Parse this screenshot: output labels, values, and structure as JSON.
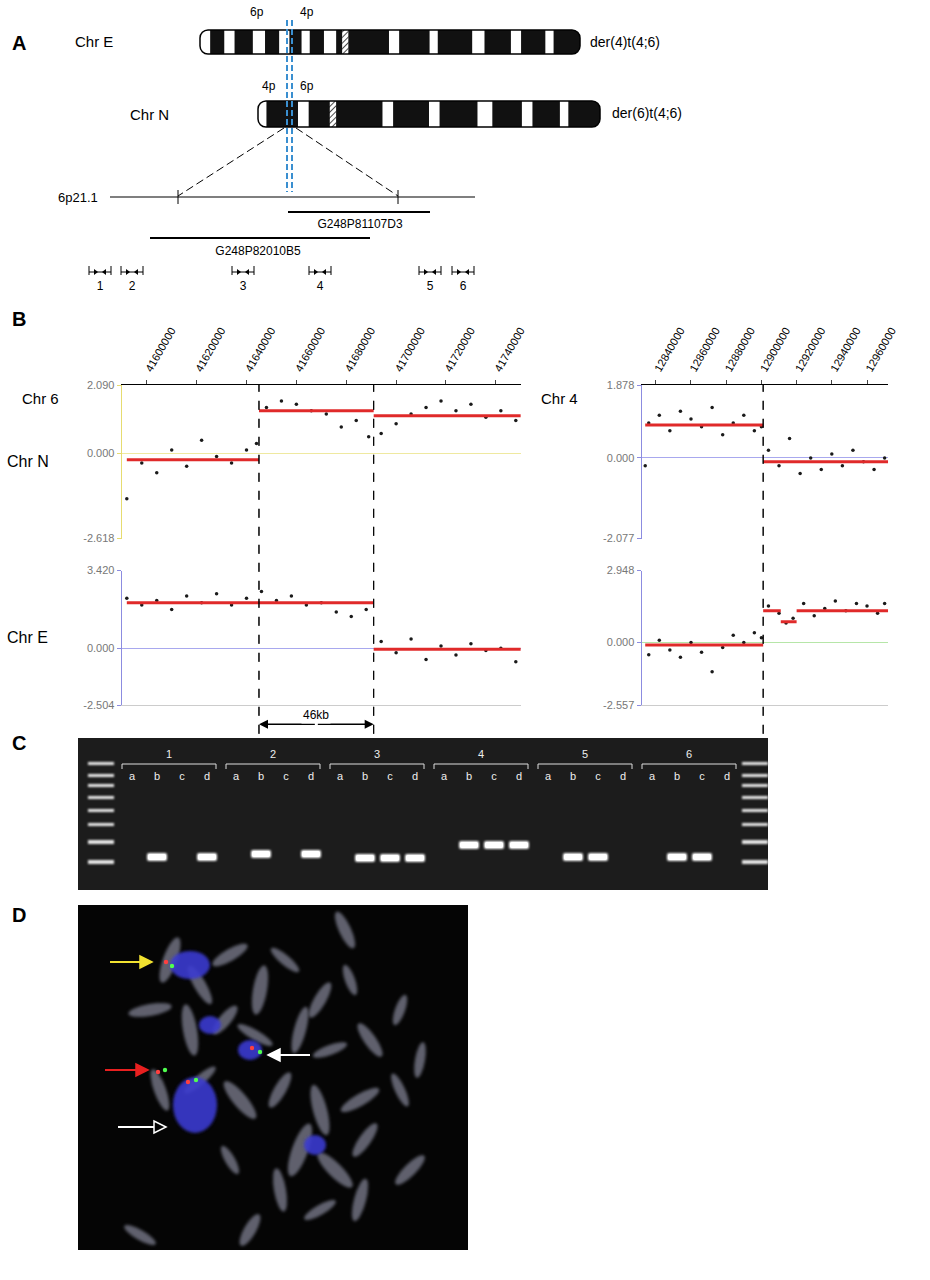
{
  "figure": {
    "A": {
      "letter": "A",
      "chromosomes": [
        {
          "name": "Chr E",
          "label": "der(4)t(4;6)",
          "arms": [
            "6p",
            "4p"
          ]
        },
        {
          "name": "Chr N",
          "label": "der(6)t(4;6)",
          "arms": [
            "4p",
            "6p"
          ]
        }
      ],
      "band": "6p21.1",
      "clones": [
        "G248P82010B5",
        "G248P81107D3"
      ],
      "primers": [
        1,
        2,
        3,
        4,
        5,
        6
      ]
    },
    "B": {
      "letter": "B",
      "span_label": "46kb"
    },
    "C": {
      "letter": "C",
      "groups": [
        {
          "label": "1",
          "lanes": [
            "a",
            "b",
            "c",
            "d"
          ],
          "bands": [
            "b",
            "d"
          ]
        },
        {
          "label": "2",
          "lanes": [
            "a",
            "b",
            "c",
            "d"
          ],
          "bands": [
            "b",
            "d"
          ]
        },
        {
          "label": "3",
          "lanes": [
            "a",
            "b",
            "c",
            "d"
          ],
          "bands": [
            "b",
            "c",
            "d"
          ]
        },
        {
          "label": "4",
          "lanes": [
            "a",
            "b",
            "c",
            "d"
          ],
          "bands": [
            "b",
            "c",
            "d"
          ]
        },
        {
          "label": "5",
          "lanes": [
            "a",
            "b",
            "c",
            "d"
          ],
          "bands": [
            "b",
            "c"
          ]
        },
        {
          "label": "6",
          "lanes": [
            "a",
            "b",
            "c",
            "d"
          ],
          "bands": [
            "b",
            "c"
          ]
        }
      ]
    },
    "D": {
      "letter": "D"
    }
  },
  "chart_data": [
    {
      "type": "scatter",
      "xlabel": "Chr 6",
      "ylabel": "Chr N",
      "xlim": [
        41590000,
        41750000
      ],
      "xticks": [
        41600000,
        41620000,
        41640000,
        41660000,
        41680000,
        41700000,
        41720000,
        41740000
      ],
      "ylim": [
        -2.618,
        2.09
      ],
      "yticks": [
        {
          "value": -2.618,
          "label": "-2.618"
        },
        {
          "value": 0,
          "label": "0.000"
        },
        {
          "value": 2.09,
          "label": "2.090"
        }
      ],
      "breakpoints": [
        41645000,
        41691000
      ],
      "series": [
        {
          "type": "scatter",
          "color": "#1a1a1a",
          "marker": "dot",
          "x": [
            41592000,
            41598000,
            41604000,
            41610000,
            41616000,
            41622000,
            41628000,
            41634000,
            41640000,
            41644000,
            41648000,
            41654000,
            41660000,
            41666000,
            41672000,
            41678000,
            41684000,
            41689000,
            41694000,
            41700000,
            41706000,
            41712000,
            41718000,
            41724000,
            41730000,
            41736000,
            41742000,
            41748000
          ],
          "values": [
            -1.4,
            -0.3,
            -0.6,
            0.1,
            -0.4,
            0.4,
            -0.1,
            -0.3,
            0.1,
            0.3,
            1.4,
            1.6,
            1.5,
            1.3,
            1.2,
            0.8,
            1.0,
            0.5,
            0.6,
            0.9,
            1.2,
            1.4,
            1.6,
            1.3,
            1.5,
            1.1,
            1.3,
            1.0
          ]
        },
        {
          "type": "segments",
          "color": "#e02a2a",
          "line_style": "solid",
          "x0": [
            41592000,
            41645000,
            41691000
          ],
          "x1": [
            41645000,
            41691000,
            41750000
          ],
          "values": [
            -0.2,
            1.3,
            1.15
          ]
        }
      ]
    },
    {
      "type": "scatter",
      "ylabel": "Chr E",
      "tick_labels": "y",
      "xlim": [
        41590000,
        41750000
      ],
      "ylim": [
        -2.504,
        3.42
      ],
      "yticks": [
        {
          "value": -2.504,
          "label": "-2.504"
        },
        {
          "value": 0,
          "label": "0.000"
        },
        {
          "value": 3.42,
          "label": "3.420"
        }
      ],
      "breakpoints": [
        41645000,
        41691000
      ],
      "span": {
        "text": "46kb",
        "x0": 41645000,
        "x1": 41691000
      },
      "series": [
        {
          "type": "scatter",
          "color": "#1a1a1a",
          "marker": "dot",
          "x": [
            41592000,
            41598000,
            41604000,
            41610000,
            41616000,
            41622000,
            41628000,
            41634000,
            41640000,
            41646000,
            41652000,
            41658000,
            41664000,
            41670000,
            41676000,
            41682000,
            41688000,
            41694000,
            41700000,
            41706000,
            41712000,
            41718000,
            41724000,
            41730000,
            41736000,
            41742000,
            41748000
          ],
          "values": [
            2.2,
            1.9,
            2.1,
            1.7,
            2.3,
            2.0,
            2.4,
            1.9,
            2.2,
            2.5,
            2.1,
            2.3,
            1.9,
            2.0,
            1.6,
            1.4,
            1.7,
            0.3,
            -0.2,
            0.4,
            -0.5,
            0.1,
            -0.3,
            0.2,
            -0.1,
            0.0,
            -0.6
          ]
        },
        {
          "type": "segments",
          "color": "#e02a2a",
          "line_style": "solid",
          "x0": [
            41592000,
            41691000
          ],
          "x1": [
            41691000,
            41750000
          ],
          "values": [
            2.0,
            -0.05
          ]
        }
      ]
    },
    {
      "type": "scatter",
      "xlabel": "Chr 4",
      "xlim": [
        12832000,
        12972000
      ],
      "xticks": [
        12840000,
        12860000,
        12880000,
        12900000,
        12920000,
        12940000,
        12960000
      ],
      "ylim": [
        -2.077,
        1.878
      ],
      "yticks": [
        {
          "value": -2.077,
          "label": "-2.077"
        },
        {
          "value": 0,
          "label": "0.000"
        },
        {
          "value": 1.878,
          "label": "1.878"
        }
      ],
      "breakpoints": [
        12901000
      ],
      "series": [
        {
          "type": "scatter",
          "color": "#1a1a1a",
          "marker": "dot",
          "x": [
            12834000,
            12836000,
            12842000,
            12848000,
            12854000,
            12860000,
            12866000,
            12872000,
            12878000,
            12884000,
            12890000,
            12896000,
            12900000,
            12904000,
            12910000,
            12916000,
            12922000,
            12928000,
            12934000,
            12940000,
            12946000,
            12952000,
            12958000,
            12964000,
            12970000
          ],
          "values": [
            -0.2,
            0.9,
            1.1,
            0.7,
            1.2,
            1.0,
            0.8,
            1.3,
            0.6,
            0.9,
            1.1,
            0.7,
            0.8,
            0.2,
            -0.2,
            0.5,
            -0.4,
            0.0,
            -0.3,
            0.1,
            -0.2,
            0.2,
            -0.1,
            -0.3,
            0.0
          ]
        },
        {
          "type": "segments",
          "color": "#e02a2a",
          "line_style": "solid",
          "x0": [
            12834000,
            12901000
          ],
          "x1": [
            12901000,
            12972000
          ],
          "values": [
            0.85,
            -0.1
          ]
        }
      ]
    },
    {
      "type": "scatter",
      "tick_labels": "y",
      "xlim": [
        12832000,
        12972000
      ],
      "ylim": [
        -2.557,
        2.948
      ],
      "yticks": [
        {
          "value": -2.557,
          "label": "-2.557"
        },
        {
          "value": 0,
          "label": "0.000"
        },
        {
          "value": 2.948,
          "label": "2.948"
        }
      ],
      "breakpoints": [
        12901000
      ],
      "series": [
        {
          "type": "scatter",
          "color": "#1a1a1a",
          "marker": "dot",
          "x": [
            12836000,
            12842000,
            12848000,
            12854000,
            12860000,
            12866000,
            12872000,
            12878000,
            12884000,
            12890000,
            12896000,
            12900000,
            12904000,
            12910000,
            12914000,
            12918000,
            12924000,
            12930000,
            12936000,
            12942000,
            12948000,
            12954000,
            12960000,
            12966000,
            12970000
          ],
          "values": [
            -0.5,
            0.1,
            -0.3,
            -0.6,
            0.0,
            -0.4,
            -1.2,
            -0.2,
            0.3,
            0.0,
            0.4,
            0.2,
            1.5,
            1.2,
            0.8,
            1.0,
            1.6,
            1.1,
            1.4,
            1.7,
            1.3,
            1.6,
            1.5,
            1.2,
            1.6
          ]
        },
        {
          "type": "segments",
          "color": "#e02a2a",
          "line_style": "solid",
          "x0": [
            12834000,
            12901000,
            12911000,
            12920000
          ],
          "x1": [
            12901000,
            12911000,
            12920000,
            12972000
          ],
          "values": [
            -0.1,
            1.3,
            0.85,
            1.3
          ]
        }
      ]
    }
  ]
}
